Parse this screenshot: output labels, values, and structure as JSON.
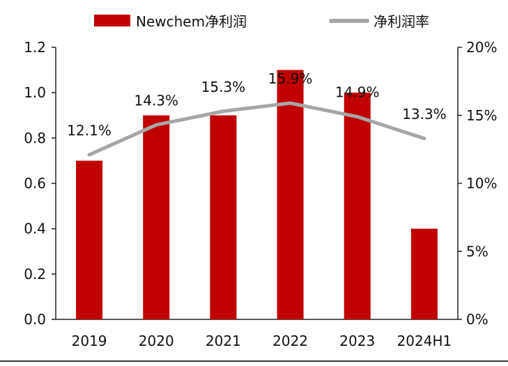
{
  "chart_data": {
    "type": "bar",
    "categories": [
      "2019",
      "2020",
      "2021",
      "2022",
      "2023",
      "2024H1"
    ],
    "series": [
      {
        "name": "Newchem净利润",
        "type": "bar",
        "axis": "left",
        "color": "#C00000",
        "values": [
          0.7,
          0.9,
          0.9,
          1.1,
          1.0,
          0.4
        ]
      },
      {
        "name": "净利润率",
        "type": "line",
        "axis": "right",
        "color": "#A6A6A6",
        "values": [
          12.1,
          14.3,
          15.3,
          15.9,
          14.9,
          13.3
        ],
        "labels": [
          "12.1%",
          "14.3%",
          "15.3%",
          "15.9%",
          "14.9%",
          "13.3%"
        ]
      }
    ],
    "left_axis": {
      "ylim": [
        0,
        1.2
      ],
      "ticks": [
        0.0,
        0.2,
        0.4,
        0.6,
        0.8,
        1.0,
        1.2
      ],
      "tick_labels": [
        "0.0",
        "0.2",
        "0.4",
        "0.6",
        "0.8",
        "1.0",
        "1.2"
      ]
    },
    "right_axis": {
      "ylim": [
        0,
        20
      ],
      "ticks": [
        0,
        5,
        10,
        15,
        20
      ],
      "tick_labels": [
        "0%",
        "5%",
        "10%",
        "15%",
        "20%"
      ]
    },
    "legend_position": "top",
    "grid": false
  }
}
